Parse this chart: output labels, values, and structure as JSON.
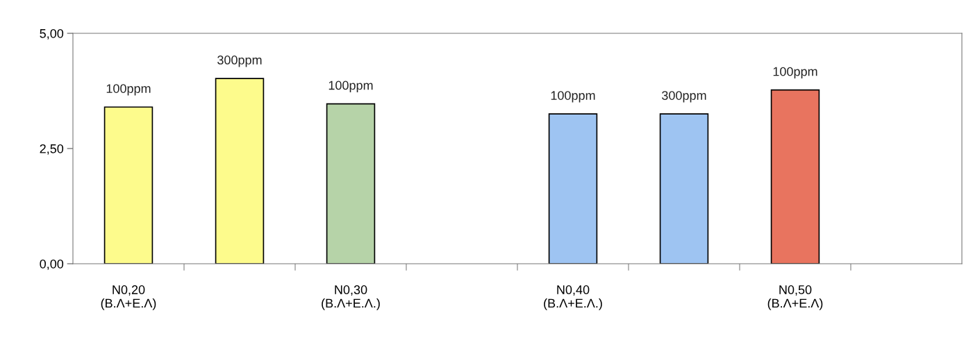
{
  "chart_data": {
    "type": "bar",
    "categories": [
      "N0,20\n(B.Λ+E.Λ)",
      null,
      "N0,30\n(B.Λ+E.Λ.)",
      null,
      "N0,40\n(B.Λ+E.Λ.)",
      null,
      "N0,50\n(B.Λ+E.Λ)",
      null
    ],
    "values": [
      3.4,
      4.02,
      3.47,
      null,
      3.25,
      3.25,
      3.77,
      null
    ],
    "colors": [
      "#fdfb8c",
      "#fdfb8c",
      "#b6d3a8",
      null,
      "#9ec4f2",
      "#9ec4f2",
      "#e8745f",
      null
    ],
    "annotations": [
      {
        "text": "100ppm",
        "x": "N0,20\n(B.Λ+E.Λ)",
        "y": 3.4
      },
      {
        "text": "300ppm",
        "y": 4.02
      },
      {
        "text": "100ppm",
        "x": "N0,30\n(B.Λ+E.Λ.)",
        "y": 3.47
      },
      {
        "text": "100ppm",
        "x": "N0,40\n(B.Λ+E.Λ.)",
        "y": 3.25
      },
      {
        "text": "300ppm",
        "y": 3.25
      },
      {
        "text": "100ppm",
        "x": "N0,50\n(B.Λ+E.Λ)",
        "y": 3.77
      }
    ],
    "ylim": [
      0,
      5
    ],
    "yticks": [
      {
        "value": 0,
        "label": "0,00"
      },
      {
        "value": 2.5,
        "label": "2,50"
      },
      {
        "value": 5,
        "label": "5,00"
      }
    ],
    "grid": false,
    "legend": false
  }
}
